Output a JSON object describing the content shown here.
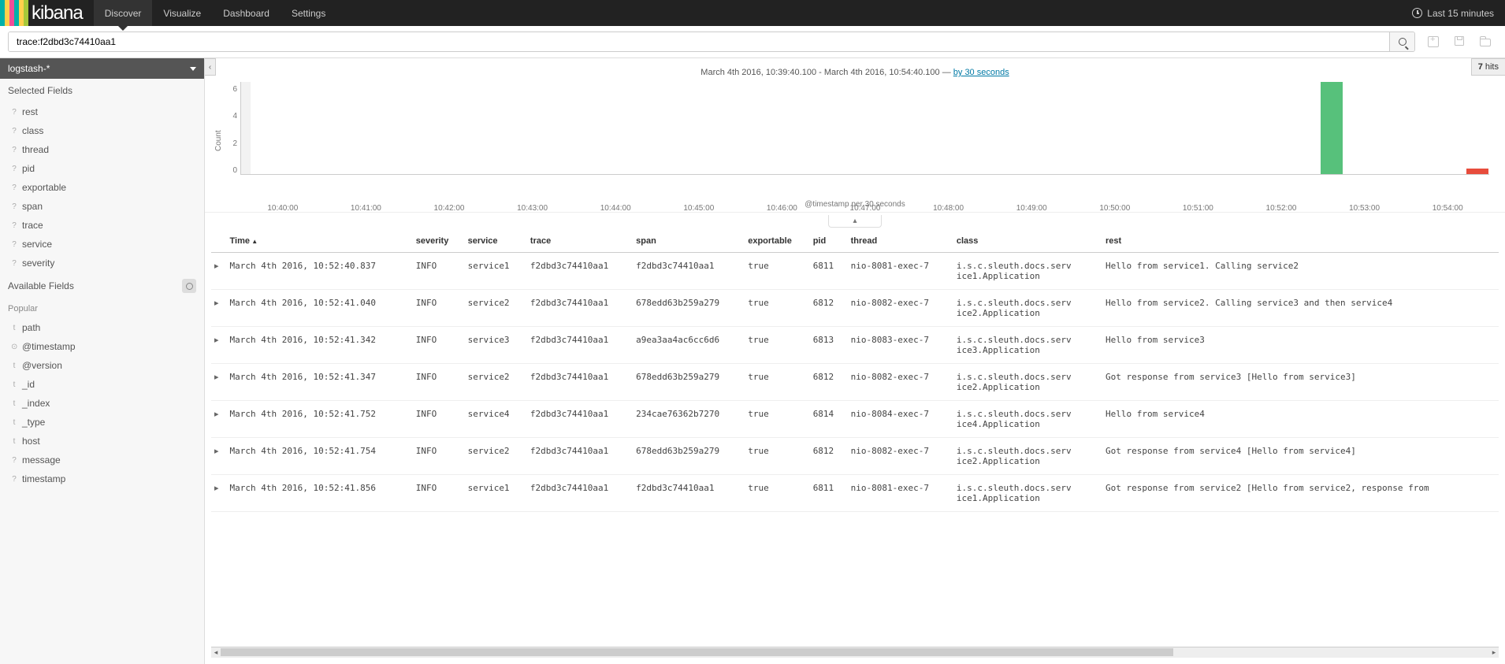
{
  "brand": {
    "name": "kibana",
    "stripe_colors": [
      "#00b1a9",
      "#ffd04c",
      "#f04e98",
      "#00b1a9",
      "#ffd04c",
      "#a6c83a"
    ]
  },
  "nav": {
    "tabs": [
      {
        "label": "Discover",
        "active": true
      },
      {
        "label": "Visualize",
        "active": false
      },
      {
        "label": "Dashboard",
        "active": false
      },
      {
        "label": "Settings",
        "active": false
      }
    ],
    "time_label": "Last 15 minutes"
  },
  "search": {
    "query": "trace:f2dbd3c74410aa1"
  },
  "sidebar": {
    "index_pattern": "logstash-*",
    "selected_header": "Selected Fields",
    "selected_fields": [
      {
        "type": "?",
        "name": "rest"
      },
      {
        "type": "?",
        "name": "class"
      },
      {
        "type": "?",
        "name": "thread"
      },
      {
        "type": "?",
        "name": "pid"
      },
      {
        "type": "?",
        "name": "exportable"
      },
      {
        "type": "?",
        "name": "span"
      },
      {
        "type": "?",
        "name": "trace"
      },
      {
        "type": "?",
        "name": "service"
      },
      {
        "type": "?",
        "name": "severity"
      }
    ],
    "available_header": "Available Fields",
    "popular_label": "Popular",
    "available_fields": [
      {
        "type": "t",
        "name": "path"
      },
      {
        "type": "⊙",
        "name": "@timestamp"
      },
      {
        "type": "t",
        "name": "@version"
      },
      {
        "type": "t",
        "name": "_id"
      },
      {
        "type": "t",
        "name": "_index"
      },
      {
        "type": "t",
        "name": "_type"
      },
      {
        "type": "t",
        "name": "host"
      },
      {
        "type": "?",
        "name": "message"
      },
      {
        "type": "?",
        "name": "timestamp"
      }
    ]
  },
  "hits": {
    "count": "7",
    "label": "hits"
  },
  "timerange": {
    "from": "March 4th 2016, 10:39:40.100",
    "to": "March 4th 2016, 10:54:40.100",
    "sep": " - ",
    "dash": " — ",
    "interval_link": "by 30 seconds"
  },
  "chart": {
    "ylabel": "Count",
    "xlabel": "@timestamp per 30 seconds",
    "yticks": [
      "6",
      "4",
      "2",
      "0"
    ],
    "xticks": [
      "10:40:00",
      "10:41:00",
      "10:42:00",
      "10:43:00",
      "10:44:00",
      "10:45:00",
      "10:46:00",
      "10:47:00",
      "10:48:00",
      "10:49:00",
      "10:50:00",
      "10:51:00",
      "10:52:00",
      "10:53:00",
      "10:54:00"
    ],
    "ymax": 7,
    "bars": [
      {
        "x_pct": 86.5,
        "value": 7,
        "color": "#57c17b"
      },
      {
        "x_pct": 98.2,
        "value": 0.4,
        "color": "#e74c3c"
      }
    ],
    "bg_overlay": "#f2f2f2"
  },
  "table": {
    "columns": [
      "Time",
      "severity",
      "service",
      "trace",
      "span",
      "exportable",
      "pid",
      "thread",
      "class",
      "rest"
    ],
    "sorted_col": 0,
    "rows": [
      {
        "time": "March 4th 2016, 10:52:40.837",
        "severity": "INFO",
        "service": "service1",
        "trace": "f2dbd3c74410aa1",
        "span": "f2dbd3c74410aa1",
        "exportable": "true",
        "pid": "6811",
        "thread": "nio-8081-exec-7",
        "class": "i.s.c.sleuth.docs.service1.Application",
        "rest": "Hello from service1. Calling service2"
      },
      {
        "time": "March 4th 2016, 10:52:41.040",
        "severity": "INFO",
        "service": "service2",
        "trace": "f2dbd3c74410aa1",
        "span": "678edd63b259a279",
        "exportable": "true",
        "pid": "6812",
        "thread": "nio-8082-exec-7",
        "class": "i.s.c.sleuth.docs.service2.Application",
        "rest": "Hello from service2. Calling service3 and then service4"
      },
      {
        "time": "March 4th 2016, 10:52:41.342",
        "severity": "INFO",
        "service": "service3",
        "trace": "f2dbd3c74410aa1",
        "span": "a9ea3aa4ac6cc6d6",
        "exportable": "true",
        "pid": "6813",
        "thread": "nio-8083-exec-7",
        "class": "i.s.c.sleuth.docs.service3.Application",
        "rest": "Hello from service3"
      },
      {
        "time": "March 4th 2016, 10:52:41.347",
        "severity": "INFO",
        "service": "service2",
        "trace": "f2dbd3c74410aa1",
        "span": "678edd63b259a279",
        "exportable": "true",
        "pid": "6812",
        "thread": "nio-8082-exec-7",
        "class": "i.s.c.sleuth.docs.service2.Application",
        "rest": "Got response from service3 [Hello from service3]"
      },
      {
        "time": "March 4th 2016, 10:52:41.752",
        "severity": "INFO",
        "service": "service4",
        "trace": "f2dbd3c74410aa1",
        "span": "234cae76362b7270",
        "exportable": "true",
        "pid": "6814",
        "thread": "nio-8084-exec-7",
        "class": "i.s.c.sleuth.docs.service4.Application",
        "rest": "Hello from service4"
      },
      {
        "time": "March 4th 2016, 10:52:41.754",
        "severity": "INFO",
        "service": "service2",
        "trace": "f2dbd3c74410aa1",
        "span": "678edd63b259a279",
        "exportable": "true",
        "pid": "6812",
        "thread": "nio-8082-exec-7",
        "class": "i.s.c.sleuth.docs.service2.Application",
        "rest": "Got response from service4 [Hello from service4]"
      },
      {
        "time": "March 4th 2016, 10:52:41.856",
        "severity": "INFO",
        "service": "service1",
        "trace": "f2dbd3c74410aa1",
        "span": "f2dbd3c74410aa1",
        "exportable": "true",
        "pid": "6811",
        "thread": "nio-8081-exec-7",
        "class": "i.s.c.sleuth.docs.service1.Application",
        "rest": "Got response from service2 [Hello from service2, response from"
      }
    ]
  }
}
